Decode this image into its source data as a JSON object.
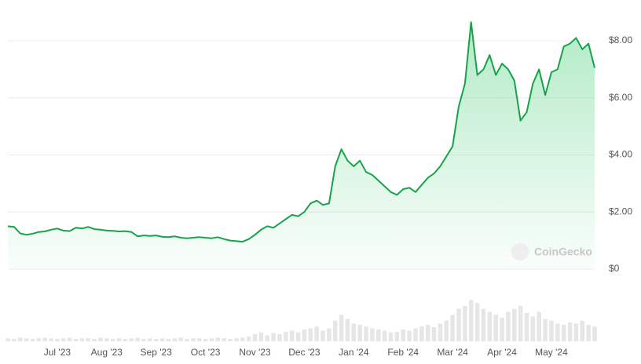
{
  "chart_data": [
    {
      "type": "line",
      "categories": [
        null,
        null,
        null,
        null,
        null,
        null,
        null,
        null,
        "Jul '23",
        null,
        null,
        null,
        null,
        null,
        null,
        null,
        "Aug '23",
        null,
        null,
        null,
        null,
        null,
        null,
        null,
        "Sep '23",
        null,
        null,
        null,
        null,
        null,
        null,
        null,
        "Oct '23",
        null,
        null,
        null,
        null,
        null,
        null,
        null,
        "Nov '23",
        null,
        null,
        null,
        null,
        null,
        null,
        null,
        "Dec '23",
        null,
        null,
        null,
        null,
        null,
        null,
        null,
        "Jan '24",
        null,
        null,
        null,
        null,
        null,
        null,
        null,
        "Feb '24",
        null,
        null,
        null,
        null,
        null,
        null,
        null,
        "Mar '24",
        null,
        null,
        null,
        null,
        null,
        null,
        null,
        "Apr '24",
        null,
        null,
        null,
        null,
        null,
        null,
        null,
        "May '24",
        null,
        null,
        null,
        null,
        null,
        null,
        null
      ],
      "series": [
        {
          "color": "#16a34a",
          "values": [
            1.5,
            1.48,
            1.25,
            1.2,
            1.24,
            1.3,
            1.32,
            1.38,
            1.42,
            1.35,
            1.33,
            1.45,
            1.42,
            1.48,
            1.4,
            1.38,
            1.35,
            1.34,
            1.32,
            1.33,
            1.3,
            1.15,
            1.18,
            1.16,
            1.18,
            1.13,
            1.12,
            1.15,
            1.1,
            1.08,
            1.1,
            1.12,
            1.1,
            1.08,
            1.12,
            1.05,
            1.0,
            0.98,
            0.96,
            1.05,
            1.2,
            1.38,
            1.5,
            1.45,
            1.6,
            1.75,
            1.9,
            1.85,
            2.0,
            2.3,
            2.4,
            2.25,
            2.3,
            3.6,
            4.2,
            3.8,
            3.6,
            3.8,
            3.4,
            3.3,
            3.1,
            2.9,
            2.7,
            2.6,
            2.8,
            2.85,
            2.7,
            2.95,
            3.2,
            3.35,
            3.6,
            3.95,
            4.3,
            5.7,
            6.5,
            8.65,
            6.8,
            7.0,
            7.5,
            6.8,
            7.2,
            7.0,
            6.6,
            5.2,
            5.5,
            6.5,
            7.0,
            6.1,
            6.9,
            7.0,
            7.8,
            7.9,
            8.1,
            7.7,
            7.9,
            7.05
          ]
        }
      ],
      "ylim": [
        0,
        8.8
      ],
      "yticks": [
        {
          "value": 0,
          "label": "$0"
        },
        {
          "value": 2,
          "label": "$2.00"
        },
        {
          "value": 4,
          "label": "$4.00"
        },
        {
          "value": 6,
          "label": "$6.00"
        },
        {
          "value": 8,
          "label": "$8.00"
        }
      ],
      "grid": true,
      "watermark": "CoinGecko"
    },
    {
      "type": "bar",
      "color": "#e6e6e6",
      "values": [
        5,
        4,
        6,
        5,
        4,
        5,
        6,
        5,
        4,
        5,
        6,
        4,
        5,
        5,
        4,
        6,
        5,
        4,
        5,
        4,
        5,
        6,
        4,
        5,
        4,
        5,
        4,
        5,
        6,
        4,
        5,
        5,
        4,
        5,
        6,
        5,
        4,
        5,
        6,
        8,
        12,
        15,
        10,
        14,
        12,
        16,
        18,
        15,
        20,
        22,
        25,
        18,
        22,
        35,
        45,
        38,
        30,
        28,
        25,
        22,
        20,
        18,
        15,
        16,
        20,
        18,
        22,
        25,
        28,
        24,
        30,
        35,
        45,
        55,
        60,
        70,
        65,
        55,
        50,
        45,
        40,
        50,
        55,
        60,
        48,
        42,
        50,
        38,
        35,
        30,
        28,
        32,
        30,
        35,
        28,
        25
      ],
      "ylim": [
        0,
        100
      ]
    }
  ]
}
